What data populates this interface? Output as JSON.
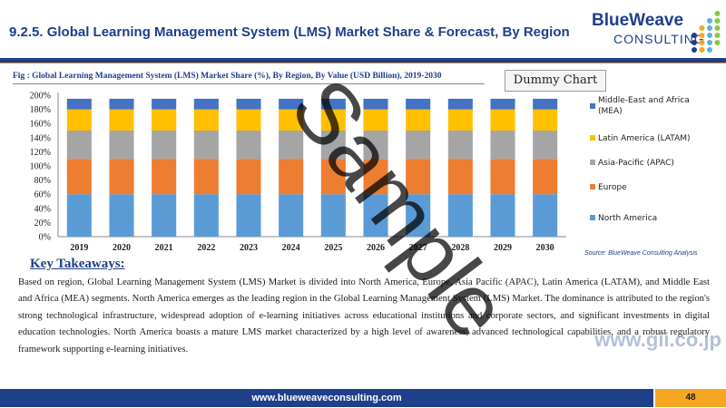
{
  "header": {
    "title": "9.2.5. Global Learning Management System (LMS) Market Share & Forecast, By Region"
  },
  "logo": {
    "line1": "BlueWeave",
    "line2": "CONSULTING",
    "dot_colors": [
      "#1e3f8a",
      "#f5a623",
      "#5ab0e0",
      "#8cc63f"
    ]
  },
  "figure": {
    "caption": "Fig : Global Learning Management System (LMS) Market Share (%), By Region, By Value (USD Billion), 2019-2030",
    "dummy_label": "Dummy Chart",
    "source": "Source: BlueWeave Consulting Analysis"
  },
  "chart_data": {
    "type": "bar",
    "stacked": true,
    "categories": [
      "2019",
      "2020",
      "2021",
      "2022",
      "2023",
      "2024",
      "2025",
      "2026",
      "2027",
      "2028",
      "2029",
      "2030"
    ],
    "series": [
      {
        "name": "North America",
        "color": "#5b9bd5",
        "values": [
          60,
          60,
          60,
          60,
          60,
          60,
          60,
          60,
          60,
          60,
          60,
          60
        ]
      },
      {
        "name": "Europe",
        "color": "#ed7d31",
        "values": [
          50,
          50,
          50,
          50,
          50,
          50,
          50,
          50,
          50,
          50,
          50,
          50
        ]
      },
      {
        "name": "Asia-Pacific (APAC)",
        "color": "#a5a5a5",
        "values": [
          40,
          40,
          40,
          40,
          40,
          40,
          40,
          40,
          40,
          40,
          40,
          40
        ]
      },
      {
        "name": "Latin America (LATAM)",
        "color": "#ffc000",
        "values": [
          30,
          30,
          30,
          30,
          30,
          30,
          30,
          30,
          30,
          30,
          30,
          30
        ]
      },
      {
        "name": "Middle-East and Africa (MEA)",
        "color": "#4472c4",
        "values": [
          15,
          15,
          15,
          15,
          15,
          15,
          15,
          15,
          15,
          15,
          15,
          15
        ]
      }
    ],
    "ylim": [
      0,
      200
    ],
    "yticks": [
      "0%",
      "20%",
      "40%",
      "60%",
      "80%",
      "100%",
      "120%",
      "140%",
      "160%",
      "180%",
      "200%"
    ],
    "grid": false,
    "legend_position": "right"
  },
  "key_takeaways": {
    "heading": "Key Takeaways:",
    "text": "Based on region, Global Learning Management System (LMS) Market is divided into North America, Europe, Asia Pacific (APAC), Latin America (LATAM), and Middle East and Africa (MEA) segments. North America emerges as the leading region in the Global Learning Management System (LMS) Market. The dominance is attributed to the region's strong technological infrastructure, widespread adoption of e-learning initiatives across educational institutions and corporate sectors, and significant investments in digital education technologies. North America boasts a mature LMS market characterized by a high level of awareness, advanced technological capabilities, and a robust regulatory framework supporting e-learning initiatives."
  },
  "footer": {
    "url": "www.blueweaveconsulting.com",
    "page_number": "48"
  },
  "watermarks": {
    "sample": "Sample",
    "gii": "www.gii.co.jp"
  }
}
